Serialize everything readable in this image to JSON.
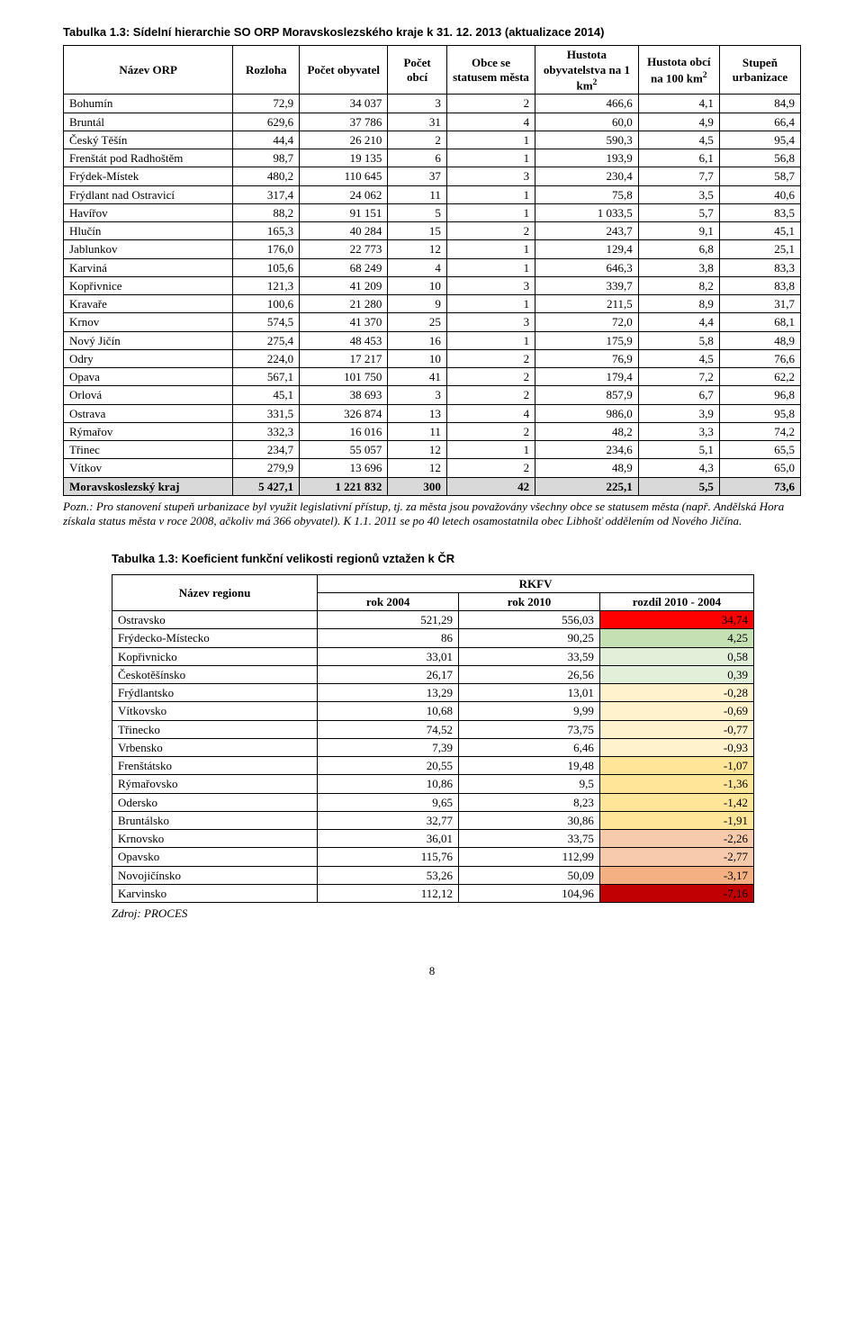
{
  "table1": {
    "title": "Tabulka 1.3: Sídelní hierarchie SO ORP Moravskoslezského kraje k 31. 12. 2013 (aktualizace 2014)",
    "columns": [
      "Název ORP",
      "Rozloha",
      "Počet obyvatel",
      "Počet obcí",
      "Obce se statusem města",
      "Hustota obyvatelstva na 1 km²",
      "Hustota obcí na 100 km²",
      "Stupeň urbanizace"
    ],
    "col_widths": [
      "23%",
      "9%",
      "12%",
      "8%",
      "12%",
      "14%",
      "11%",
      "11%"
    ],
    "rows": [
      [
        "Bohumín",
        "72,9",
        "34 037",
        "3",
        "2",
        "466,6",
        "4,1",
        "84,9"
      ],
      [
        "Bruntál",
        "629,6",
        "37 786",
        "31",
        "4",
        "60,0",
        "4,9",
        "66,4"
      ],
      [
        "Český Těšín",
        "44,4",
        "26 210",
        "2",
        "1",
        "590,3",
        "4,5",
        "95,4"
      ],
      [
        "Frenštát pod Radhoštěm",
        "98,7",
        "19 135",
        "6",
        "1",
        "193,9",
        "6,1",
        "56,8"
      ],
      [
        "Frýdek-Místek",
        "480,2",
        "110 645",
        "37",
        "3",
        "230,4",
        "7,7",
        "58,7"
      ],
      [
        "Frýdlant nad Ostravicí",
        "317,4",
        "24 062",
        "11",
        "1",
        "75,8",
        "3,5",
        "40,6"
      ],
      [
        "Havířov",
        "88,2",
        "91 151",
        "5",
        "1",
        "1 033,5",
        "5,7",
        "83,5"
      ],
      [
        "Hlučín",
        "165,3",
        "40 284",
        "15",
        "2",
        "243,7",
        "9,1",
        "45,1"
      ],
      [
        "Jablunkov",
        "176,0",
        "22 773",
        "12",
        "1",
        "129,4",
        "6,8",
        "25,1"
      ],
      [
        "Karviná",
        "105,6",
        "68 249",
        "4",
        "1",
        "646,3",
        "3,8",
        "83,3"
      ],
      [
        "Kopřivnice",
        "121,3",
        "41 209",
        "10",
        "3",
        "339,7",
        "8,2",
        "83,8"
      ],
      [
        "Kravaře",
        "100,6",
        "21 280",
        "9",
        "1",
        "211,5",
        "8,9",
        "31,7"
      ],
      [
        "Krnov",
        "574,5",
        "41 370",
        "25",
        "3",
        "72,0",
        "4,4",
        "68,1"
      ],
      [
        "Nový Jičín",
        "275,4",
        "48 453",
        "16",
        "1",
        "175,9",
        "5,8",
        "48,9"
      ],
      [
        "Odry",
        "224,0",
        "17 217",
        "10",
        "2",
        "76,9",
        "4,5",
        "76,6"
      ],
      [
        "Opava",
        "567,1",
        "101 750",
        "41",
        "2",
        "179,4",
        "7,2",
        "62,2"
      ],
      [
        "Orlová",
        "45,1",
        "38 693",
        "3",
        "2",
        "857,9",
        "6,7",
        "96,8"
      ],
      [
        "Ostrava",
        "331,5",
        "326 874",
        "13",
        "4",
        "986,0",
        "3,9",
        "95,8"
      ],
      [
        "Rýmařov",
        "332,3",
        "16 016",
        "11",
        "2",
        "48,2",
        "3,3",
        "74,2"
      ],
      [
        "Třinec",
        "234,7",
        "55 057",
        "12",
        "1",
        "234,6",
        "5,1",
        "65,5"
      ],
      [
        "Vítkov",
        "279,9",
        "13 696",
        "12",
        "2",
        "48,9",
        "4,3",
        "65,0"
      ]
    ],
    "total_row": [
      "Moravskoslezský kraj",
      "5 427,1",
      "1 221 832",
      "300",
      "42",
      "225,1",
      "5,5",
      "73,6"
    ],
    "note": "Pozn.: Pro stanovení stupeň urbanizace byl využit legislativní přístup, tj. za města jsou považovány všechny obce se statusem města (např. Andělská Hora získala status města v roce 2008, ačkoliv má 366 obyvatel). K 1.1. 2011 se po 40 letech osamostatnila obec Libhošť oddělením od Nového Jičína."
  },
  "table2": {
    "title": "Tabulka 1.3: Koeficient funkční velikosti regionů vztažen k ČR",
    "name_header": "Název regionu",
    "group_header": "RKFV",
    "sub_headers": [
      "rok 2004",
      "rok 2010",
      "rozdíl 2010 - 2004"
    ],
    "rows": [
      {
        "name": "Ostravsko",
        "c1": "521,29",
        "c2": "556,03",
        "c3": "34,74",
        "bg": "#ff0000"
      },
      {
        "name": "Frýdecko-Místecko",
        "c1": "86",
        "c2": "90,25",
        "c3": "4,25",
        "bg": "#c5e0b3"
      },
      {
        "name": "Kopřivnicko",
        "c1": "33,01",
        "c2": "33,59",
        "c3": "0,58",
        "bg": "#e2efd9"
      },
      {
        "name": "Českotěšínsko",
        "c1": "26,17",
        "c2": "26,56",
        "c3": "0,39",
        "bg": "#e2efd9"
      },
      {
        "name": "Frýdlantsko",
        "c1": "13,29",
        "c2": "13,01",
        "c3": "-0,28",
        "bg": "#fff2cc"
      },
      {
        "name": "Vítkovsko",
        "c1": "10,68",
        "c2": "9,99",
        "c3": "-0,69",
        "bg": "#fff2cc"
      },
      {
        "name": "Třinecko",
        "c1": "74,52",
        "c2": "73,75",
        "c3": "-0,77",
        "bg": "#fff2cc"
      },
      {
        "name": "Vrbensko",
        "c1": "7,39",
        "c2": "6,46",
        "c3": "-0,93",
        "bg": "#fff2cc"
      },
      {
        "name": "Frenštátsko",
        "c1": "20,55",
        "c2": "19,48",
        "c3": "-1,07",
        "bg": "#ffe598"
      },
      {
        "name": "Rýmařovsko",
        "c1": "10,86",
        "c2": "9,5",
        "c3": "-1,36",
        "bg": "#ffe598"
      },
      {
        "name": "Odersko",
        "c1": "9,65",
        "c2": "8,23",
        "c3": "-1,42",
        "bg": "#ffe598"
      },
      {
        "name": "Bruntálsko",
        "c1": "32,77",
        "c2": "30,86",
        "c3": "-1,91",
        "bg": "#ffe598"
      },
      {
        "name": "Krnovsko",
        "c1": "36,01",
        "c2": "33,75",
        "c3": "-2,26",
        "bg": "#f7caac"
      },
      {
        "name": "Opavsko",
        "c1": "115,76",
        "c2": "112,99",
        "c3": "-2,77",
        "bg": "#f7caac"
      },
      {
        "name": "Novojičínsko",
        "c1": "53,26",
        "c2": "50,09",
        "c3": "-3,17",
        "bg": "#f4b083"
      },
      {
        "name": "Karvinsko",
        "c1": "112,12",
        "c2": "104,96",
        "c3": "-7,16",
        "bg": "#c00000"
      }
    ],
    "col_widths": [
      "32%",
      "22%",
      "22%",
      "24%"
    ],
    "source": "Zdroj: PROCES"
  },
  "page_number": "8"
}
